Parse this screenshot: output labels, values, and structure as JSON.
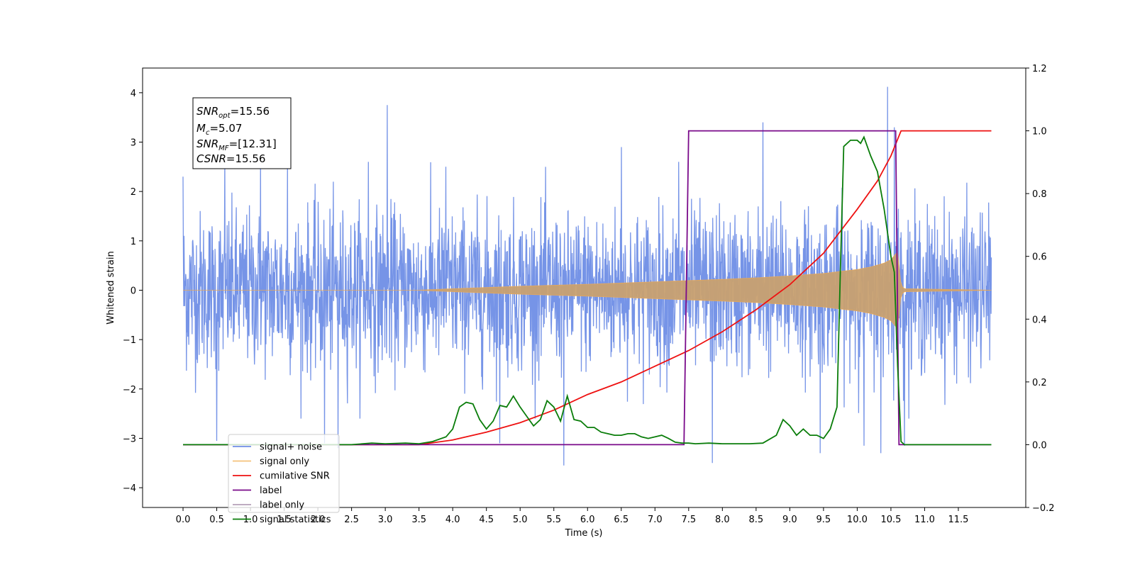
{
  "chart_data": {
    "type": "line",
    "xlabel": "Time (s)",
    "ylabel_left": "Whitened strain",
    "ylabel_right": "",
    "xlim": [
      -0.6,
      12.5
    ],
    "ylim_left": [
      -4.4,
      4.5
    ],
    "ylim_right": [
      -0.2,
      1.2
    ],
    "x_ticks": [
      0.0,
      0.5,
      1.0,
      1.5,
      2.0,
      2.5,
      3.0,
      3.5,
      4.0,
      4.5,
      5.0,
      5.5,
      6.0,
      6.5,
      7.0,
      7.5,
      8.0,
      8.5,
      9.0,
      9.5,
      10.0,
      10.5,
      11.0,
      11.5
    ],
    "x_tick_labels": [
      "0.0",
      "0.5",
      "1.0",
      "1.5",
      "2.0",
      "2.5",
      "3.0",
      "3.5",
      "4.0",
      "4.5",
      "5.0",
      "5.5",
      "6.0",
      "6.5",
      "7.0",
      "7.5",
      "8.0",
      "8.5",
      "9.0",
      "9.5",
      "10.0",
      "10.5",
      "11.0",
      "11.5"
    ],
    "y_left_ticks": [
      -4,
      -3,
      -2,
      -1,
      0,
      1,
      2,
      3,
      4
    ],
    "y_left_tick_labels": [
      "−4",
      "−3",
      "−2",
      "−1",
      "0",
      "1",
      "2",
      "3",
      "4"
    ],
    "y_right_ticks": [
      -0.2,
      0.0,
      0.2,
      0.4,
      0.6,
      0.8,
      1.0,
      1.2
    ],
    "y_right_tick_labels": [
      "−0.2",
      "0.0",
      "0.2",
      "0.4",
      "0.6",
      "0.8",
      "1.0",
      "1.2"
    ],
    "annotation": {
      "lines": [
        {
          "main": "SNR",
          "sub": "opt",
          "value": "=15.56"
        },
        {
          "main": "M",
          "sub": "c",
          "value": "=5.07"
        },
        {
          "main": "SNR",
          "sub": "MF",
          "value": "=[12.31]"
        },
        {
          "main": "CSNR",
          "sub": "",
          "value": "=15.56"
        }
      ]
    },
    "legend": {
      "placement": "lower-left",
      "entries": [
        {
          "label": "signal+ noise",
          "color": "#6f8ee6"
        },
        {
          "label": "signal only",
          "color": "#f5c27a"
        },
        {
          "label": "cumilative SNR",
          "color": "#ee1111"
        },
        {
          "label": "label",
          "color": "#7a0a8a"
        },
        {
          "label": "label only",
          "color": "#b5a0b8"
        },
        {
          "label": "signal statistics",
          "color": "#0a7d0a"
        }
      ]
    },
    "series": [
      {
        "name": "signal+ noise",
        "axis": "left",
        "color": "#6f8ee6",
        "style": "noise",
        "x_range": [
          0.0,
          11.99
        ],
        "typical_range": [
          -1.9,
          1.9
        ],
        "spikes": [
          {
            "x": 0.0,
            "y": 2.3
          },
          {
            "x": 0.5,
            "y": -3.05
          },
          {
            "x": 0.62,
            "y": 2.7
          },
          {
            "x": 1.15,
            "y": 2.75
          },
          {
            "x": 1.55,
            "y": 2.6
          },
          {
            "x": 2.1,
            "y": -3.1
          },
          {
            "x": 2.3,
            "y": -3.2
          },
          {
            "x": 2.75,
            "y": 2.6
          },
          {
            "x": 3.03,
            "y": 3.75
          },
          {
            "x": 3.9,
            "y": 2.5
          },
          {
            "x": 4.7,
            "y": -3.1
          },
          {
            "x": 5.65,
            "y": -3.55
          },
          {
            "x": 6.5,
            "y": 2.9
          },
          {
            "x": 7.35,
            "y": 2.6
          },
          {
            "x": 7.85,
            "y": -3.5
          },
          {
            "x": 8.6,
            "y": 3.4
          },
          {
            "x": 9.45,
            "y": -3.3
          },
          {
            "x": 10.1,
            "y": -3.15
          },
          {
            "x": 10.35,
            "y": -3.3
          },
          {
            "x": 10.45,
            "y": 4.12
          },
          {
            "x": 10.55,
            "y": 3.3
          },
          {
            "x": 10.7,
            "y": -3.15
          }
        ]
      },
      {
        "name": "signal only",
        "axis": "left",
        "color": "#c8a070",
        "style": "chirp-envelope",
        "x": [
          0.0,
          3.5,
          4.0,
          5.0,
          6.0,
          7.0,
          8.0,
          8.5,
          9.0,
          9.5,
          10.0,
          10.2,
          10.4,
          10.5,
          10.6,
          10.65,
          10.7,
          11.99
        ],
        "envelope": [
          0.0,
          0.0,
          0.03,
          0.08,
          0.12,
          0.17,
          0.22,
          0.25,
          0.29,
          0.34,
          0.42,
          0.47,
          0.55,
          0.62,
          0.78,
          0.1,
          0.03,
          0.0
        ]
      },
      {
        "name": "cumilative SNR",
        "axis": "right",
        "color": "#ee1111",
        "x": [
          0.0,
          3.5,
          4.0,
          4.5,
          5.0,
          5.5,
          6.0,
          6.5,
          7.0,
          7.5,
          8.0,
          8.5,
          9.0,
          9.5,
          10.0,
          10.3,
          10.5,
          10.65,
          11.99
        ],
        "values": [
          0.0,
          0.0,
          0.015,
          0.04,
          0.07,
          0.11,
          0.16,
          0.2,
          0.25,
          0.3,
          0.36,
          0.43,
          0.51,
          0.61,
          0.75,
          0.84,
          0.92,
          1.0,
          1.0
        ]
      },
      {
        "name": "label",
        "axis": "right",
        "color": "#7a0a8a",
        "x": [
          0.0,
          7.43,
          7.5,
          10.57,
          10.62,
          11.99
        ],
        "values": [
          0.0,
          0.0,
          1.0,
          1.0,
          0.0,
          0.0
        ]
      },
      {
        "name": "signal statistics",
        "axis": "right",
        "color": "#0a7d0a",
        "x": [
          0.0,
          2.5,
          2.8,
          3.0,
          3.3,
          3.5,
          3.7,
          3.9,
          4.0,
          4.1,
          4.2,
          4.3,
          4.4,
          4.5,
          4.6,
          4.7,
          4.8,
          4.9,
          5.0,
          5.1,
          5.2,
          5.3,
          5.4,
          5.5,
          5.6,
          5.7,
          5.8,
          5.9,
          6.0,
          6.1,
          6.2,
          6.3,
          6.4,
          6.5,
          6.6,
          6.7,
          6.8,
          6.9,
          7.0,
          7.1,
          7.2,
          7.3,
          7.4,
          7.5,
          7.6,
          7.8,
          8.0,
          8.2,
          8.4,
          8.6,
          8.8,
          8.9,
          9.0,
          9.1,
          9.2,
          9.3,
          9.4,
          9.5,
          9.6,
          9.7,
          9.75,
          9.8,
          9.9,
          10.0,
          10.05,
          10.1,
          10.2,
          10.3,
          10.4,
          10.5,
          10.55,
          10.6,
          10.65,
          10.7,
          11.99
        ],
        "values": [
          0.0,
          0.0,
          0.005,
          0.003,
          0.005,
          0.003,
          0.01,
          0.025,
          0.05,
          0.12,
          0.135,
          0.13,
          0.08,
          0.05,
          0.075,
          0.125,
          0.12,
          0.155,
          0.12,
          0.09,
          0.06,
          0.08,
          0.14,
          0.12,
          0.075,
          0.155,
          0.08,
          0.075,
          0.055,
          0.055,
          0.04,
          0.035,
          0.03,
          0.03,
          0.035,
          0.035,
          0.025,
          0.02,
          0.025,
          0.03,
          0.02,
          0.008,
          0.005,
          0.005,
          0.003,
          0.005,
          0.003,
          0.003,
          0.003,
          0.005,
          0.03,
          0.08,
          0.06,
          0.03,
          0.05,
          0.03,
          0.03,
          0.02,
          0.05,
          0.12,
          0.55,
          0.95,
          0.97,
          0.97,
          0.96,
          0.98,
          0.92,
          0.87,
          0.75,
          0.6,
          0.55,
          0.25,
          0.01,
          0.0,
          0.0
        ]
      }
    ]
  }
}
